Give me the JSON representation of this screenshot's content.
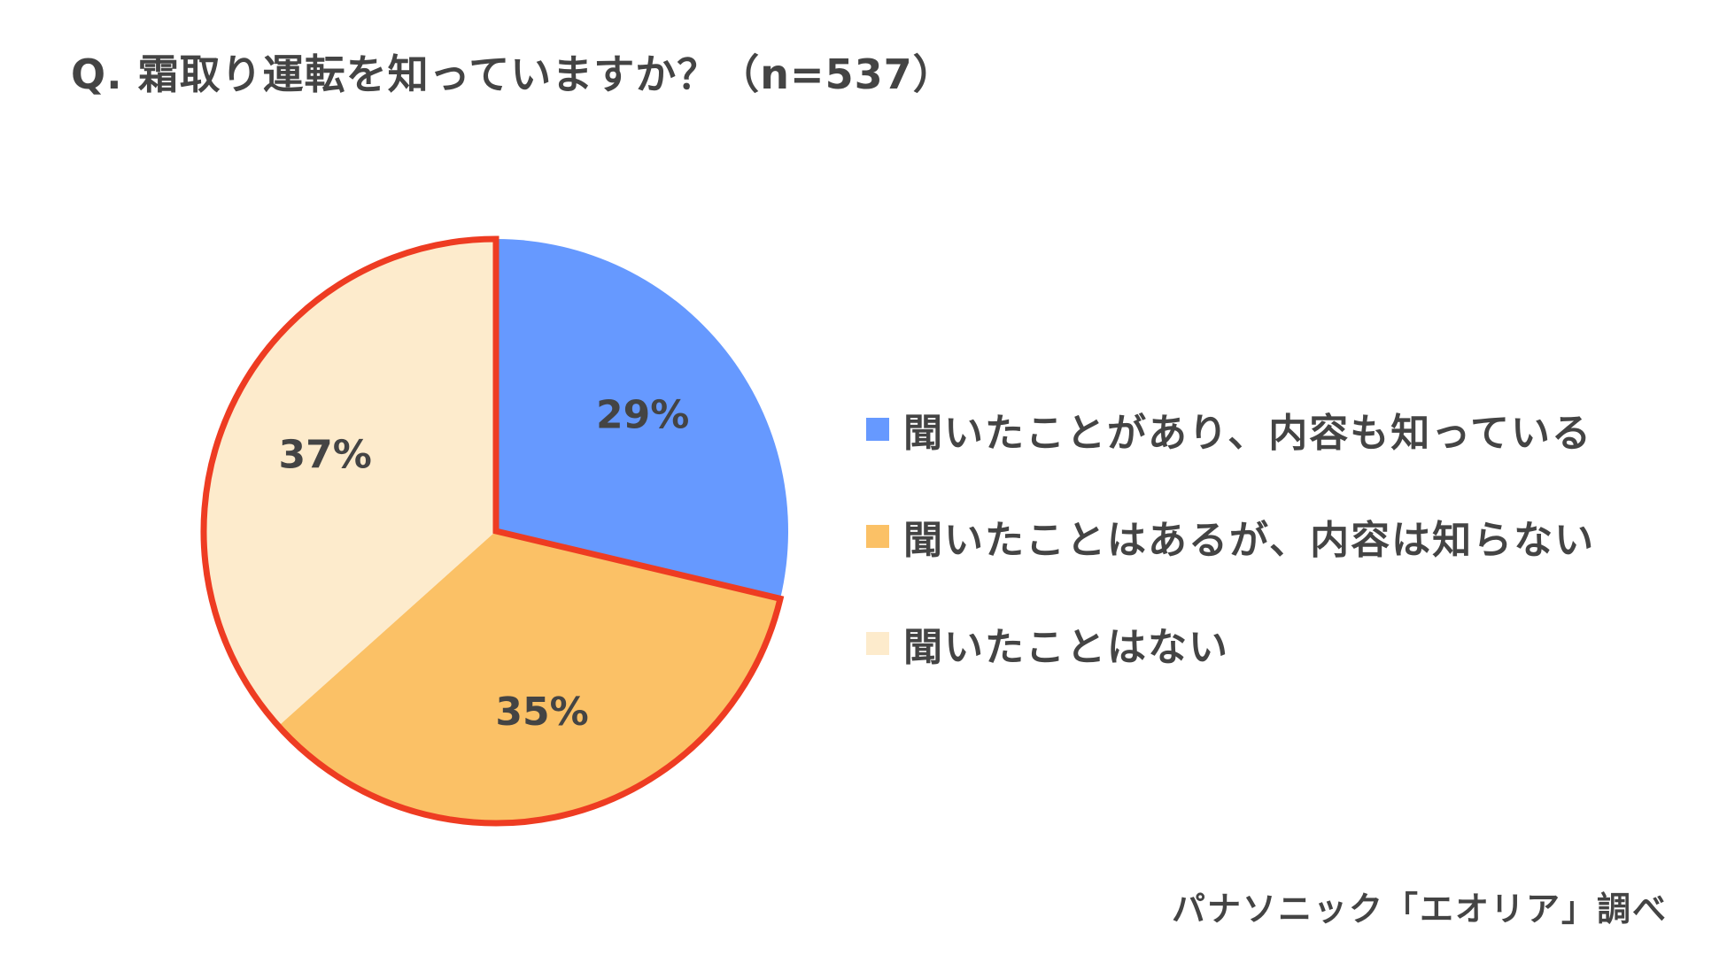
{
  "chart_data": {
    "type": "pie",
    "title": "Q. 霜取り運転を知っていますか？（n=537）",
    "categories": [
      "聞いたことがあり、内容も知っている",
      "聞いたことはあるが、内容は知らない",
      "聞いたことはない"
    ],
    "values": [
      29,
      35,
      37
    ],
    "labels": [
      "29%",
      "35%",
      "37%"
    ],
    "colors": [
      "#6699ff",
      "#fbc166",
      "#fdebcc"
    ],
    "highlight_color": "#ee3c22",
    "legend_placement": "right",
    "source": "パナソニック「エオリア」調べ"
  }
}
